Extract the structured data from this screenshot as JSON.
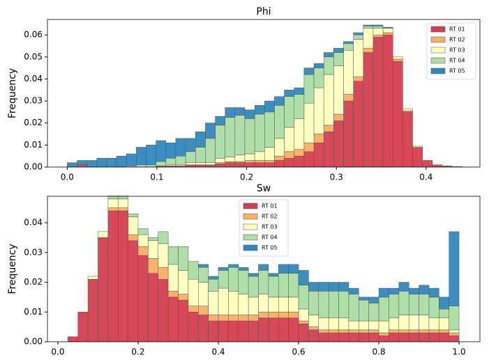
{
  "chart_data": [
    {
      "type": "histogram",
      "title": "Phi",
      "y_label": "Frequency",
      "legend": "upper right",
      "stacked": true,
      "bins": [
        0,
        0.011,
        0.022,
        0.033,
        0.044,
        0.055,
        0.066,
        0.077,
        0.088,
        0.099,
        0.11,
        0.121,
        0.132,
        0.143,
        0.154,
        0.165,
        0.176,
        0.187,
        0.198,
        0.209,
        0.22,
        0.231,
        0.242,
        0.253,
        0.264,
        0.275,
        0.286,
        0.297,
        0.308,
        0.319,
        0.33,
        0.341,
        0.352,
        0.363,
        0.374,
        0.385,
        0.396,
        0.407,
        0.418,
        0.429,
        0.44
      ],
      "series": [
        {
          "name": "RT 01",
          "color": "#d53e4f",
          "values": [
            0,
            0.001,
            0,
            0,
            0,
            0,
            0,
            0,
            0,
            0.0005,
            0.0005,
            0.0005,
            0.001,
            0.001,
            0.001,
            0.0015,
            0.002,
            0.002,
            0.002,
            0.002,
            0.002,
            0.003,
            0.004,
            0.005,
            0.007,
            0.011,
            0.016,
            0.021,
            0.03,
            0.039,
            0.052,
            0.059,
            0.06,
            0.048,
            0.025,
            0.009,
            0.003,
            0.001,
            0.0005,
            0.0002
          ]
        },
        {
          "name": "RT 02",
          "color": "#fdae61",
          "values": [
            0,
            0,
            0,
            0,
            0,
            0,
            0,
            0,
            0,
            0,
            0,
            0,
            0,
            0,
            0,
            0.0005,
            0.0005,
            0.0005,
            0.001,
            0.001,
            0.001,
            0.002,
            0.003,
            0.003,
            0.004,
            0.004,
            0.003,
            0.003,
            0.003,
            0.002,
            0.002,
            0.001,
            0.001,
            0.001,
            0.0005,
            0,
            0,
            0,
            0,
            0
          ]
        },
        {
          "name": "RT 03",
          "color": "#ffffbf",
          "values": [
            0,
            0,
            0,
            0,
            0,
            0,
            0,
            0,
            0,
            0,
            0.0005,
            0.0005,
            0.001,
            0.001,
            0.001,
            0.002,
            0.002,
            0.003,
            0.003,
            0.004,
            0.006,
            0.008,
            0.011,
            0.014,
            0.018,
            0.021,
            0.023,
            0.022,
            0.02,
            0.017,
            0.009,
            0.003,
            0.002,
            0.001,
            0.001,
            0.0005,
            0,
            0,
            0,
            0
          ]
        },
        {
          "name": "RT 04",
          "color": "#abdda4",
          "values": [
            0,
            0,
            0,
            0,
            0,
            0,
            0.0005,
            0.001,
            0.001,
            0.002,
            0.003,
            0.004,
            0.005,
            0.007,
            0.011,
            0.015,
            0.018,
            0.018,
            0.016,
            0.017,
            0.016,
            0.015,
            0.014,
            0.011,
            0.013,
            0.009,
            0.008,
            0.006,
            0.003,
            0.002,
            0.001,
            0.001,
            0,
            0,
            0,
            0,
            0,
            0,
            0,
            0
          ]
        },
        {
          "name": "RT 05",
          "color": "#3288bd",
          "values": [
            0.002,
            0.002,
            0.003,
            0.004,
            0.004,
            0.005,
            0.0055,
            0.008,
            0.009,
            0.0095,
            0.007,
            0.008,
            0.006,
            0.007,
            0.007,
            0.004,
            0.0045,
            0.0035,
            0.004,
            0.004,
            0.005,
            0.004,
            0.003,
            0.003,
            0.003,
            0.002,
            0.002,
            0.002,
            0.001,
            0.001,
            0.0005,
            0.0005,
            0.0005,
            0,
            0,
            0,
            0,
            0,
            0,
            0
          ]
        }
      ],
      "xlim": [
        -0.022,
        0.46
      ],
      "xticks": [
        {
          "value": 0,
          "label": "0.0"
        },
        0.1,
        0.2,
        0.3,
        0.4
      ],
      "ylim": [
        0,
        0.067
      ],
      "yticks": [
        {
          "value": 0,
          "label": "0.00"
        },
        {
          "value": 0.01,
          "label": "0.01"
        },
        {
          "value": 0.02,
          "label": "0.02"
        },
        {
          "value": 0.03,
          "label": "0.03"
        },
        {
          "value": 0.04,
          "label": "0.04"
        },
        {
          "value": 0.05,
          "label": "0.05"
        },
        {
          "value": 0.06,
          "label": "0.06"
        }
      ]
    },
    {
      "type": "histogram",
      "title": "Sw",
      "y_label": "Frequency",
      "legend": "upper center",
      "stacked": true,
      "bins": [
        0,
        0.025,
        0.05,
        0.075,
        0.1,
        0.125,
        0.15,
        0.175,
        0.2,
        0.225,
        0.25,
        0.275,
        0.3,
        0.325,
        0.35,
        0.375,
        0.4,
        0.425,
        0.45,
        0.475,
        0.5,
        0.525,
        0.55,
        0.575,
        0.6,
        0.625,
        0.65,
        0.675,
        0.7,
        0.725,
        0.75,
        0.775,
        0.8,
        0.825,
        0.85,
        0.875,
        0.9,
        0.925,
        0.95,
        0.975,
        1
      ],
      "series": [
        {
          "name": "RT 01",
          "color": "#d53e4f",
          "values": [
            0,
            0.0017,
            0.01,
            0.021,
            0.035,
            0.044,
            0.044,
            0.034,
            0.029,
            0.023,
            0.021,
            0.015,
            0.014,
            0.01,
            0.009,
            0.007,
            0.007,
            0.007,
            0.007,
            0.007,
            0.008,
            0.008,
            0.008,
            0.008,
            0.006,
            0.004,
            0.003,
            0.003,
            0.003,
            0.003,
            0.003,
            0.003,
            0.002,
            0.003,
            0.003,
            0.003,
            0.003,
            0.003,
            0.003,
            0.002
          ]
        },
        {
          "name": "RT 02",
          "color": "#fdae61",
          "values": [
            0,
            0,
            0,
            0,
            0,
            0.001,
            0.001,
            0.002,
            0.003,
            0.005,
            0.004,
            0.002,
            0.002,
            0.002,
            0.003,
            0.002,
            0.002,
            0.002,
            0.002,
            0.002,
            0.002,
            0.002,
            0.002,
            0.002,
            0.001,
            0.001,
            0.001,
            0.001,
            0.001,
            0.001,
            0.001,
            0.001,
            0.001,
            0.001,
            0.001,
            0.001,
            0.001,
            0.001,
            0.001,
            0.001
          ]
        },
        {
          "name": "RT 03",
          "color": "#ffffbf",
          "values": [
            0,
            0,
            0,
            0.001,
            0.002,
            0.003,
            0.003,
            0.006,
            0.004,
            0.006,
            0.008,
            0.009,
            0.008,
            0.009,
            0.008,
            0.008,
            0.009,
            0.008,
            0.007,
            0.006,
            0.006,
            0.005,
            0.005,
            0.005,
            0.004,
            0.004,
            0.004,
            0.004,
            0.004,
            0.003,
            0.003,
            0.003,
            0.004,
            0.004,
            0.005,
            0.005,
            0.005,
            0.004,
            0.004,
            0.001
          ]
        },
        {
          "name": "RT 04",
          "color": "#abdda4",
          "values": [
            0,
            0,
            0,
            0,
            0,
            0.001,
            0.001,
            0.001,
            0.002,
            0.001,
            0.004,
            0.006,
            0.008,
            0.006,
            0.005,
            0.004,
            0.006,
            0.008,
            0.008,
            0.007,
            0.008,
            0.007,
            0.008,
            0.008,
            0.008,
            0.008,
            0.009,
            0.009,
            0.009,
            0.009,
            0.007,
            0.006,
            0.008,
            0.008,
            0.008,
            0.007,
            0.007,
            0.007,
            0.003,
            0.008
          ]
        },
        {
          "name": "RT 05",
          "color": "#3288bd",
          "values": [
            0,
            0,
            0,
            0,
            0,
            0,
            0,
            0,
            0,
            0,
            0,
            0,
            0,
            0,
            0.001,
            0.001,
            0.001,
            0.001,
            0.001,
            0.001,
            0.002,
            0.001,
            0.003,
            0.003,
            0.005,
            0.003,
            0.003,
            0.003,
            0.003,
            0.002,
            0.001,
            0.002,
            0.003,
            0.002,
            0.003,
            0.002,
            0.003,
            0.003,
            0.004,
            0.025
          ]
        }
      ],
      "xlim": [
        -0.026,
        1.052
      ],
      "xticks": [
        {
          "value": 0,
          "label": "0.0"
        },
        0.2,
        0.4,
        0.6,
        0.8,
        {
          "value": 1,
          "label": "1.0"
        }
      ],
      "ylim": [
        0,
        0.0489
      ],
      "yticks": [
        {
          "value": 0,
          "label": "0.00"
        },
        {
          "value": 0.01,
          "label": "0.01"
        },
        {
          "value": 0.02,
          "label": "0.02"
        },
        {
          "value": 0.03,
          "label": "0.03"
        },
        {
          "value": 0.04,
          "label": "0.04"
        }
      ]
    }
  ]
}
